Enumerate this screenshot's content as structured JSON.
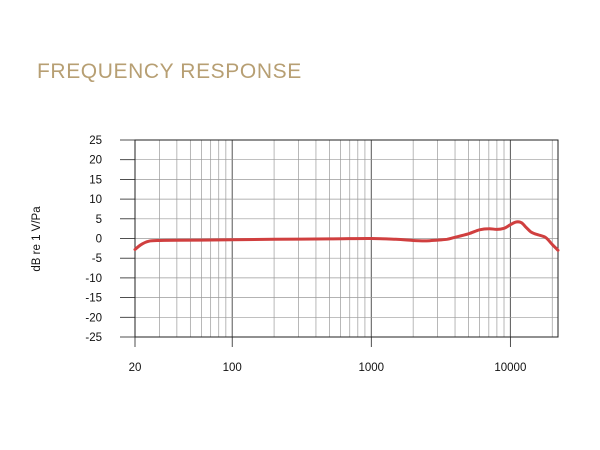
{
  "chart_data": {
    "type": "line",
    "title": "FREQUENCY RESPONSE",
    "xlabel": "",
    "ylabel": "dB re 1 V/Pa",
    "x_scale": "log",
    "xlim": [
      20,
      22000
    ],
    "ylim": [
      -25,
      25
    ],
    "grid": true,
    "x_ticks": [
      20,
      100,
      1000,
      10000
    ],
    "x_tick_labels": [
      "20",
      "100",
      "1000",
      "10000"
    ],
    "y_ticks": [
      25,
      20,
      15,
      10,
      5,
      0,
      -5,
      -10,
      -15,
      -20,
      -25
    ],
    "y_tick_labels": [
      "25",
      "20",
      "15",
      "10",
      "5",
      "0",
      "-5",
      "-10",
      "-15",
      "-20",
      "-25"
    ],
    "series": [
      {
        "color": "#d03f3f",
        "x": [
          20,
          22,
          25,
          30,
          40,
          60,
          100,
          200,
          500,
          1000,
          1500,
          2000,
          2500,
          3000,
          3500,
          4000,
          5000,
          6000,
          7000,
          8000,
          9000,
          10000,
          11000,
          12000,
          13000,
          14000,
          15000,
          16000,
          18000,
          20000,
          22000
        ],
        "y": [
          -2.8,
          -1.6,
          -0.7,
          -0.5,
          -0.45,
          -0.4,
          -0.3,
          -0.2,
          -0.1,
          0.0,
          -0.2,
          -0.5,
          -0.6,
          -0.4,
          -0.2,
          0.3,
          1.2,
          2.2,
          2.5,
          2.3,
          2.6,
          3.5,
          4.2,
          4.0,
          2.8,
          1.7,
          1.2,
          0.9,
          0.2,
          -1.5,
          -3.0
        ]
      }
    ]
  },
  "colors": {
    "title": "#b79f73",
    "grid": "#9a9a9a",
    "axis": "#222222",
    "curve": "#d03f3f"
  }
}
